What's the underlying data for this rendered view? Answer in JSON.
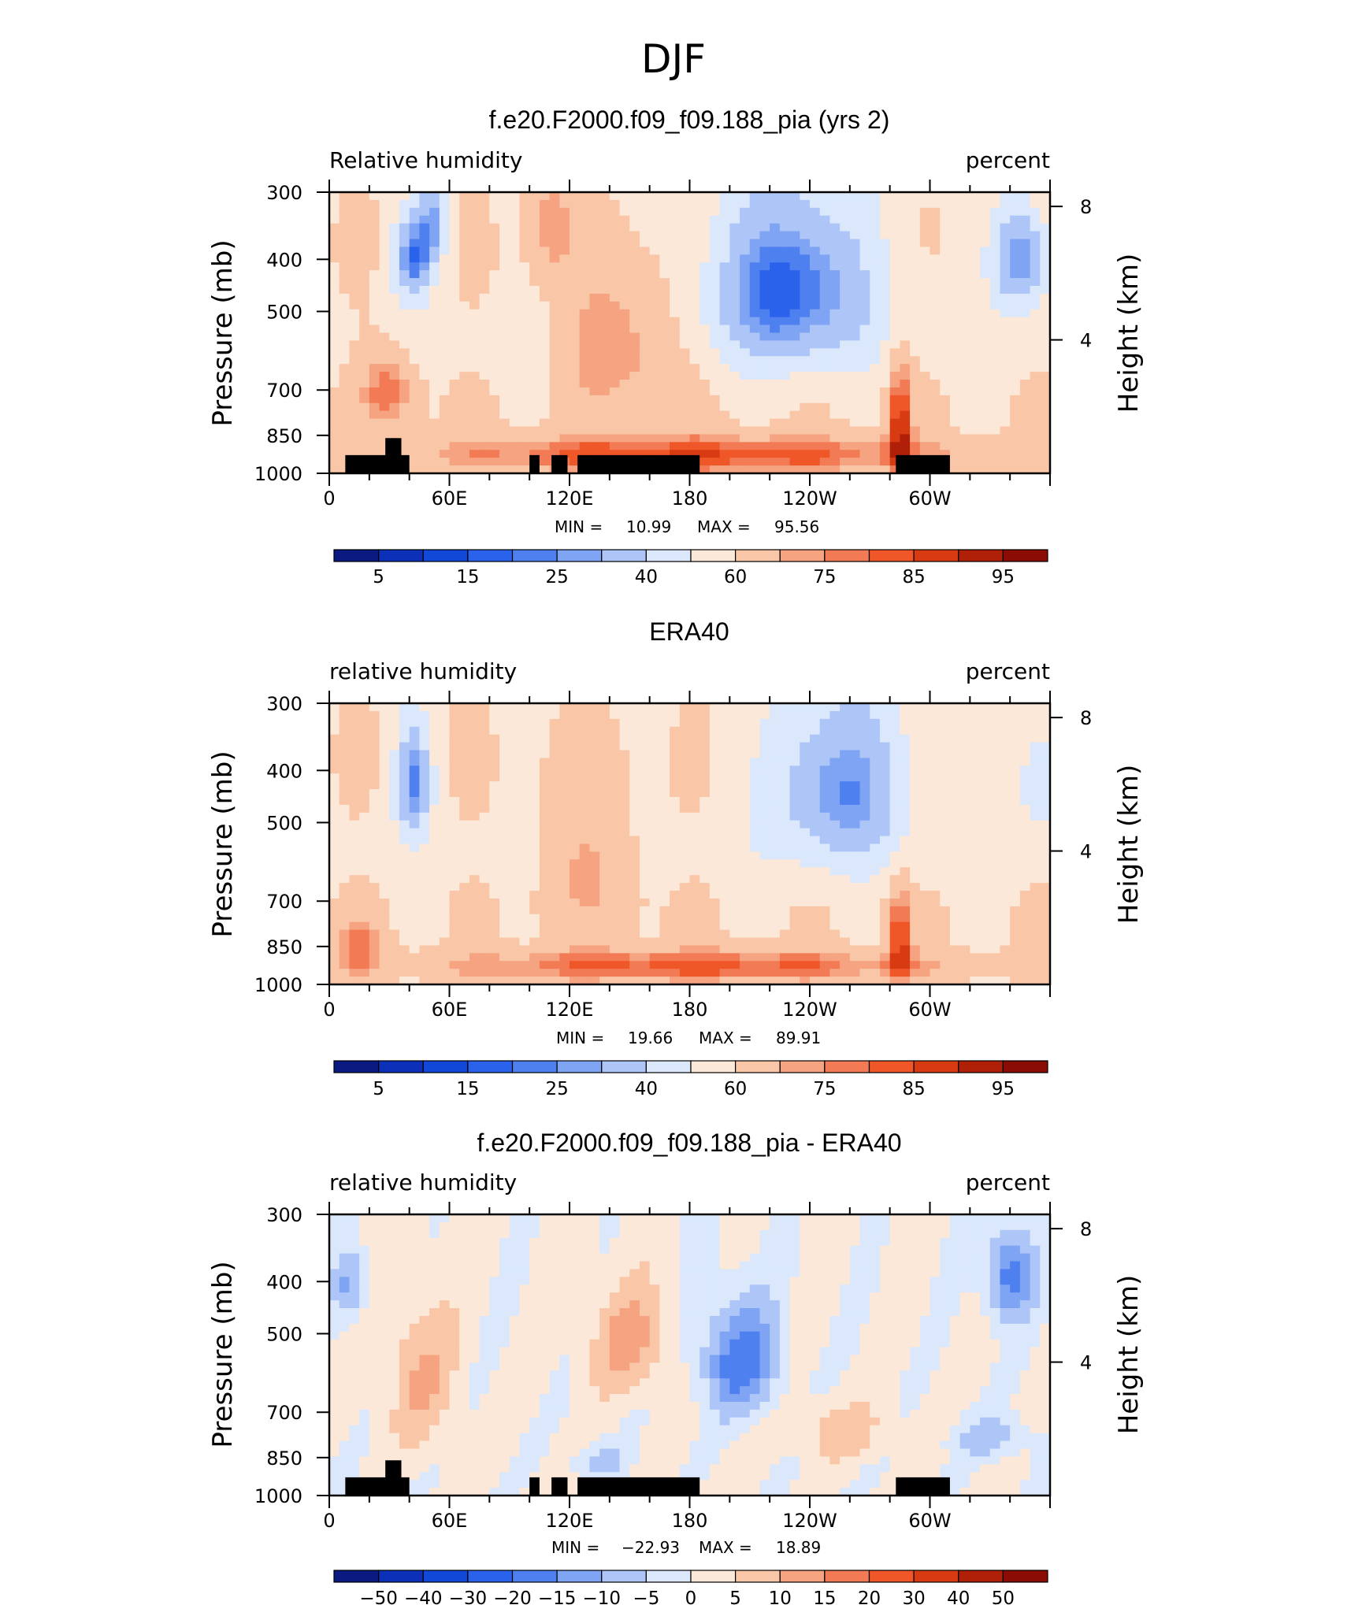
{
  "figure": {
    "title": "DJF"
  },
  "colors": {
    "rh_levels": [
      "#0a1a80",
      "#0c30b8",
      "#1148d8",
      "#2b62ec",
      "#4f80ef",
      "#7fa4f3",
      "#aec6f7",
      "#dbe8fb",
      "#fce8d8",
      "#f9c7a8",
      "#f5a380",
      "#f27b55",
      "#ef5628",
      "#d83a12",
      "#b02008",
      "#8a0c04"
    ],
    "diff_levels": [
      "#0a1a80",
      "#0c30b8",
      "#1148d8",
      "#2b62ec",
      "#4f80ef",
      "#7fa4f3",
      "#aec6f7",
      "#dbe8fb",
      "#fce8d8",
      "#f9c7a8",
      "#f5a380",
      "#f27b55",
      "#ef5628",
      "#d83a12",
      "#b02008",
      "#8a0c04"
    ],
    "land_mask": "#000000"
  },
  "chart_data": [
    {
      "type": "heatmap",
      "title": "f.e20.F2000.f09_f09.188_pia (yrs 2)",
      "left_label": "Relative humidity",
      "right_label": "percent",
      "ylabel": "Pressure (mb)",
      "ylabel_right": "Height (km)",
      "x_ticks": [
        "0",
        "60E",
        "120E",
        "180",
        "120W",
        "60W"
      ],
      "x_tick_lon": [
        0,
        60,
        120,
        180,
        240,
        300
      ],
      "xlim": [
        0,
        360
      ],
      "y_ticks": [
        "300",
        "400",
        "500",
        "700",
        "850",
        "1000"
      ],
      "y_tick_values": [
        300,
        400,
        500,
        700,
        850,
        1000
      ],
      "ylim": [
        1000,
        300
      ],
      "y_right_ticks": [
        "8",
        "4"
      ],
      "y_right_values": [
        8,
        4
      ],
      "stats": {
        "min_label": "MIN =",
        "min": "10.99",
        "max_label": "MAX =",
        "max": "95.56"
      },
      "colorbar_labels": [
        "5",
        "15",
        "25",
        "40",
        "60",
        "75",
        "85",
        "95"
      ],
      "has_land_mask": true,
      "features": [
        {
          "lon": 42,
          "p": 400,
          "v": 22,
          "slon": 10,
          "sp": 70
        },
        {
          "lon": 52,
          "p": 340,
          "v": 32,
          "slon": 8,
          "sp": 60
        },
        {
          "lon": 230,
          "p": 450,
          "v": 16,
          "slon": 40,
          "sp": 170
        },
        {
          "lon": 345,
          "p": 400,
          "v": 22,
          "slon": 14,
          "sp": 90
        },
        {
          "lon": 145,
          "p": 580,
          "v": 76,
          "slon": 30,
          "sp": 180
        },
        {
          "lon": 110,
          "p": 340,
          "v": 72,
          "slon": 12,
          "sp": 90
        },
        {
          "lon": 180,
          "p": 925,
          "v": 86,
          "slon": 150,
          "sp": 80
        },
        {
          "lon": 285,
          "p": 800,
          "v": 88,
          "slon": 6,
          "sp": 200
        },
        {
          "lon": 30,
          "p": 700,
          "v": 78,
          "slon": 14,
          "sp": 120
        }
      ],
      "base_value": 58
    },
    {
      "type": "heatmap",
      "title": "ERA40",
      "left_label": "relative humidity",
      "right_label": "percent",
      "ylabel": "Pressure (mb)",
      "ylabel_right": "Height (km)",
      "x_ticks": [
        "0",
        "60E",
        "120E",
        "180",
        "120W",
        "60W"
      ],
      "x_tick_lon": [
        0,
        60,
        120,
        180,
        240,
        300
      ],
      "xlim": [
        0,
        360
      ],
      "y_ticks": [
        "300",
        "400",
        "500",
        "700",
        "850",
        "1000"
      ],
      "y_tick_values": [
        300,
        400,
        500,
        700,
        850,
        1000
      ],
      "ylim": [
        1000,
        300
      ],
      "y_right_ticks": [
        "8",
        "4"
      ],
      "y_right_values": [
        8,
        4
      ],
      "stats": {
        "min_label": "MIN =",
        "min": "19.66",
        "max_label": "MAX =",
        "max": "89.91"
      },
      "colorbar_labels": [
        "5",
        "15",
        "25",
        "40",
        "60",
        "75",
        "85",
        "95"
      ],
      "has_land_mask": false,
      "features": [
        {
          "lon": 42,
          "p": 420,
          "v": 24,
          "slon": 9,
          "sp": 100
        },
        {
          "lon": 255,
          "p": 430,
          "v": 24,
          "slon": 35,
          "sp": 160
        },
        {
          "lon": 355,
          "p": 420,
          "v": 40,
          "slon": 12,
          "sp": 100
        },
        {
          "lon": 130,
          "p": 600,
          "v": 70,
          "slon": 28,
          "sp": 200
        },
        {
          "lon": 180,
          "p": 925,
          "v": 84,
          "slon": 140,
          "sp": 70
        },
        {
          "lon": 285,
          "p": 820,
          "v": 84,
          "slon": 6,
          "sp": 180
        },
        {
          "lon": 15,
          "p": 850,
          "v": 76,
          "slon": 12,
          "sp": 110
        }
      ],
      "base_value": 58
    },
    {
      "type": "heatmap",
      "title": "f.e20.F2000.f09_f09.188_pia - ERA40",
      "left_label": "relative humidity",
      "right_label": "percent",
      "ylabel": "Pressure (mb)",
      "ylabel_right": "Height (km)",
      "x_ticks": [
        "0",
        "60E",
        "120E",
        "180",
        "120W",
        "60W"
      ],
      "x_tick_lon": [
        0,
        60,
        120,
        180,
        240,
        300
      ],
      "xlim": [
        0,
        360
      ],
      "y_ticks": [
        "300",
        "400",
        "500",
        "700",
        "850",
        "1000"
      ],
      "y_tick_values": [
        300,
        400,
        500,
        700,
        850,
        1000
      ],
      "ylim": [
        1000,
        300
      ],
      "y_right_ticks": [
        "8",
        "4"
      ],
      "y_right_values": [
        8,
        4
      ],
      "stats": {
        "min_label": "MIN =",
        "min": "−22.93",
        "max_label": "MAX =",
        "max": "18.89"
      },
      "colorbar_labels": [
        "−50",
        "−40",
        "−30",
        "−20",
        "−15",
        "−10",
        "−5",
        "0",
        "5",
        "10",
        "15",
        "20",
        "30",
        "40",
        "50"
      ],
      "has_land_mask": true,
      "features": [
        {
          "lon": 205,
          "p": 560,
          "v": -18,
          "slon": 20,
          "sp": 140
        },
        {
          "lon": 340,
          "p": 390,
          "v": -18,
          "slon": 12,
          "sp": 80
        },
        {
          "lon": 10,
          "p": 410,
          "v": -10,
          "slon": 8,
          "sp": 60
        },
        {
          "lon": 150,
          "p": 520,
          "v": 12,
          "slon": 20,
          "sp": 120
        },
        {
          "lon": 45,
          "p": 600,
          "v": 10,
          "slon": 18,
          "sp": 200
        },
        {
          "lon": 255,
          "p": 760,
          "v": 8,
          "slon": 25,
          "sp": 90
        },
        {
          "lon": 135,
          "p": 860,
          "v": -6,
          "slon": 15,
          "sp": 60
        },
        {
          "lon": 330,
          "p": 780,
          "v": -8,
          "slon": 20,
          "sp": 70
        }
      ],
      "base_value": 1
    }
  ]
}
